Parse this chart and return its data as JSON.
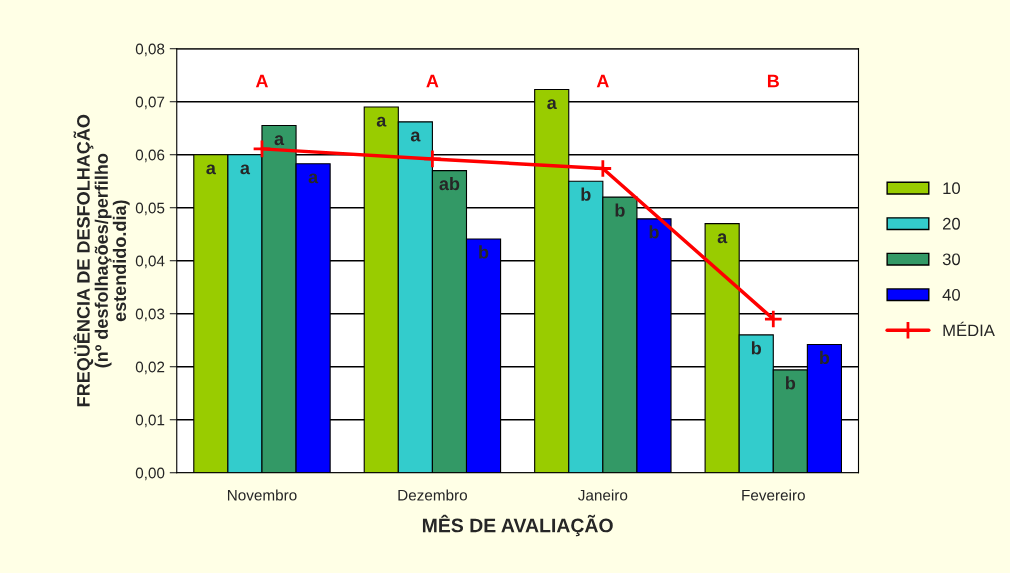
{
  "chart_data": {
    "type": "bar",
    "xlabel": "MÊS DE AVALIAÇÃO",
    "ylabel": "FREQÜÊNCIA DE DESFOLHAÇÃO\n(nº desfolhações/perfilho\nestendido.dia)",
    "categories": [
      "Novembro",
      "Dezembro",
      "Janeiro",
      "Fevereiro"
    ],
    "series": [
      {
        "name": "10",
        "color": "#99cc00",
        "values": [
          0.06,
          0.069,
          0.0723,
          0.047
        ],
        "value_labels": [
          "a",
          "a",
          "a",
          "a"
        ]
      },
      {
        "name": "20",
        "color": "#33cccc",
        "values": [
          0.06,
          0.0662,
          0.055,
          0.026
        ],
        "value_labels": [
          "a",
          "a",
          "b",
          "b"
        ]
      },
      {
        "name": "30",
        "color": "#339966",
        "values": [
          0.0655,
          0.057,
          0.052,
          0.0194
        ],
        "value_labels": [
          "a",
          "ab",
          "b",
          "b"
        ]
      },
      {
        "name": "40",
        "color": "#0000ff",
        "values": [
          0.0583,
          0.0441,
          0.0479,
          0.0242
        ],
        "value_labels": [
          "a",
          "b",
          "b",
          "b"
        ]
      },
      {
        "name": "MÉDIA",
        "type": "line",
        "color": "#ff0000",
        "marker": "cross",
        "values": [
          0.0611,
          0.0592,
          0.0574,
          0.029
        ]
      }
    ],
    "ylim": [
      0,
      0.08
    ],
    "yticks": [
      {
        "value": 0,
        "label": "0,00"
      },
      {
        "value": 0.01,
        "label": "0,01"
      },
      {
        "value": 0.02,
        "label": "0,02"
      },
      {
        "value": 0.03,
        "label": "0,03"
      },
      {
        "value": 0.04,
        "label": "0,04"
      },
      {
        "value": 0.05,
        "label": "0,05"
      },
      {
        "value": 0.06,
        "label": "0,06"
      },
      {
        "value": 0.07,
        "label": "0,07"
      },
      {
        "value": 0.08,
        "label": "0,08"
      }
    ],
    "grid": "y",
    "legend": "right",
    "annotations": [
      "A",
      "A",
      "A",
      "B"
    ]
  }
}
